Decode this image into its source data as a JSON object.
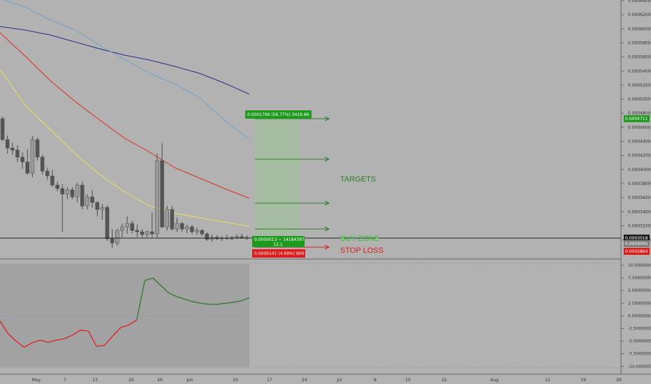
{
  "chart_data": {
    "type": "candlestick",
    "price_axis_ticks": [
      "0.0006400",
      "0.0006200",
      "0.0006000",
      "0.0005800",
      "0.0005600",
      "0.0005400",
      "0.0005200",
      "0.0005000",
      "0.0004800",
      "0.0004600",
      "0.0004400",
      "0.0004200",
      "0.0004000",
      "0.0003800",
      "0.0003600",
      "0.0003400",
      "0.0003200",
      "0.0003000"
    ],
    "oscillator_axis_ticks": [
      "10.0000000",
      "7.5000000",
      "5.0000000",
      "2.5000000",
      "0.0000000",
      "-2.5000000",
      "-5.0000000",
      "-7.5000000",
      "-10.0000000"
    ],
    "date_ticks": [
      "May",
      "7",
      "13",
      "20",
      "26",
      "Jun",
      "10",
      "17",
      "24",
      "Jul",
      "8",
      "15",
      "22",
      "Aug",
      "12",
      "19",
      "26"
    ],
    "price_badges": {
      "target": "0.0004711",
      "current": "0.0003018",
      "middle": "0.0003005",
      "stop": "0.0002864"
    },
    "annotations": {
      "target_box": "0.0001706 (56.77%) 3419.86",
      "entry_box_line1": "0.0000013 ~ 14184397",
      "entry_box_line2": "12.1",
      "stop_box": "0.0000141 (4.69%) 800",
      "targets_label": "TARGETS",
      "buy_zone_label": "BUY ZONE",
      "stop_loss_label": "STOP LOSS"
    },
    "candles": [
      [
        0.00047,
        0.000473,
        0.000438,
        0.00044
      ],
      [
        0.00044,
        0.000446,
        0.00042,
        0.000428
      ],
      [
        0.000428,
        0.000436,
        0.000418,
        0.000425
      ],
      [
        0.000425,
        0.000432,
        0.000408,
        0.000415
      ],
      [
        0.000415,
        0.000422,
        0.000398,
        0.000408
      ],
      [
        0.000408,
        0.000426,
        0.00039,
        0.000392
      ],
      [
        0.000392,
        0.000445,
        0.000386,
        0.00044
      ],
      [
        0.00044,
        0.000443,
        0.00041,
        0.000415
      ],
      [
        0.000415,
        0.000418,
        0.00039,
        0.000395
      ],
      [
        0.000395,
        0.0004,
        0.000382,
        0.000388
      ],
      [
        0.000388,
        0.000397,
        0.000372,
        0.000375
      ],
      [
        0.000375,
        0.00038,
        0.000366,
        0.00037
      ],
      [
        0.00037,
        0.000376,
        0.000308,
        0.000362
      ],
      [
        0.000362,
        0.000372,
        0.000355,
        0.000368
      ],
      [
        0.000368,
        0.000372,
        0.000355,
        0.000358
      ],
      [
        0.000358,
        0.000378,
        0.00035,
        0.000375
      ],
      [
        0.000375,
        0.00038,
        0.00034,
        0.000345
      ],
      [
        0.000345,
        0.000362,
        0.00034,
        0.000358
      ],
      [
        0.000358,
        0.000368,
        0.000342,
        0.00035
      ],
      [
        0.00035,
        0.000352,
        0.00033,
        0.00034
      ],
      [
        0.00034,
        0.000348,
        0.000325,
        0.000343
      ],
      [
        0.000343,
        0.000346,
        0.000295,
        0.000298
      ],
      [
        0.000298,
        0.000312,
        0.000285,
        0.000292
      ],
      [
        0.000292,
        0.000312,
        0.000288,
        0.00031
      ],
      [
        0.00031,
        0.00032,
        0.0003,
        0.000315
      ],
      [
        0.000315,
        0.00033,
        0.000305,
        0.00032
      ],
      [
        0.00032,
        0.000324,
        0.000306,
        0.00031
      ],
      [
        0.00031,
        0.000318,
        0.0003,
        0.000308
      ],
      [
        0.000308,
        0.000312,
        0.0003,
        0.000304
      ],
      [
        0.000304,
        0.00031,
        0.0003,
        0.000308
      ],
      [
        0.000308,
        0.000336,
        0.0003,
        0.000305
      ],
      [
        0.000305,
        0.00042,
        0.0003,
        0.00041
      ],
      [
        0.00041,
        0.000435,
        0.000313,
        0.000315
      ],
      [
        0.000315,
        0.000345,
        0.00031,
        0.00034
      ],
      [
        0.00034,
        0.000345,
        0.00031,
        0.000312
      ],
      [
        0.000312,
        0.000328,
        0.000308,
        0.00032
      ],
      [
        0.00032,
        0.000322,
        0.000308,
        0.000312
      ],
      [
        0.000312,
        0.000318,
        0.000306,
        0.000315
      ],
      [
        0.000315,
        0.000318,
        0.000305,
        0.000308
      ],
      [
        0.000308,
        0.000314,
        0.000304,
        0.00031
      ],
      [
        0.00031,
        0.000312,
        0.000302,
        0.000305
      ],
      [
        0.000305,
        0.000307,
        0.000295,
        0.000297
      ],
      [
        0.000297,
        0.000304,
        0.000294,
        0.0003
      ],
      [
        0.0003,
        0.000303,
        0.000296,
        0.000298
      ],
      [
        0.000298,
        0.000302,
        0.000295,
        0.000299
      ],
      [
        0.000299,
        0.000304,
        0.000297,
        0.000298
      ],
      [
        0.000298,
        0.000302,
        0.000296,
        0.0003
      ],
      [
        0.0003,
        0.000304,
        0.000298,
        0.000301
      ],
      [
        0.000301,
        0.000305,
        0.000298,
        0.000299
      ],
      [
        0.000299,
        0.000303,
        0.000296,
        0.0003
      ]
    ],
    "ma_lines": [
      {
        "color": "#2a2d8c",
        "values": [
          0.000602,
          0.000597,
          0.00059,
          0.00058,
          0.00057,
          0.000561,
          0.000554,
          0.000545,
          0.000535,
          0.000521,
          0.000505
        ]
      },
      {
        "color": "#6fa3c9",
        "values": [
          0.000642,
          0.00063,
          0.000612,
          0.000597,
          0.000575,
          0.000555,
          0.000535,
          0.00052,
          0.0005,
          0.000468,
          0.00044
        ]
      },
      {
        "color": "#e02a1f",
        "values": [
          0.000593,
          0.00056,
          0.000525,
          0.000495,
          0.000468,
          0.000442,
          0.000422,
          0.0004,
          0.000385,
          0.00037,
          0.000356
        ]
      },
      {
        "color": "#e8e05a",
        "values": [
          0.00054,
          0.00049,
          0.000455,
          0.00042,
          0.00039,
          0.000365,
          0.000345,
          0.000335,
          0.000328,
          0.000322,
          0.000316
        ]
      }
    ],
    "oscillator": [
      -1.0,
      -3.5,
      -5.0,
      -6.2,
      -5.3,
      -4.8,
      -5.2,
      -4.8,
      -4.5,
      -3.8,
      -2.8,
      -3.0,
      -6.0,
      -5.8,
      -4.0,
      -2.3,
      -1.8,
      -0.8,
      7.0,
      7.5,
      6.0,
      4.5,
      3.8,
      3.3,
      2.8,
      2.5,
      2.3,
      2.3,
      2.5,
      2.7,
      3.0,
      3.6
    ],
    "grid": false
  }
}
